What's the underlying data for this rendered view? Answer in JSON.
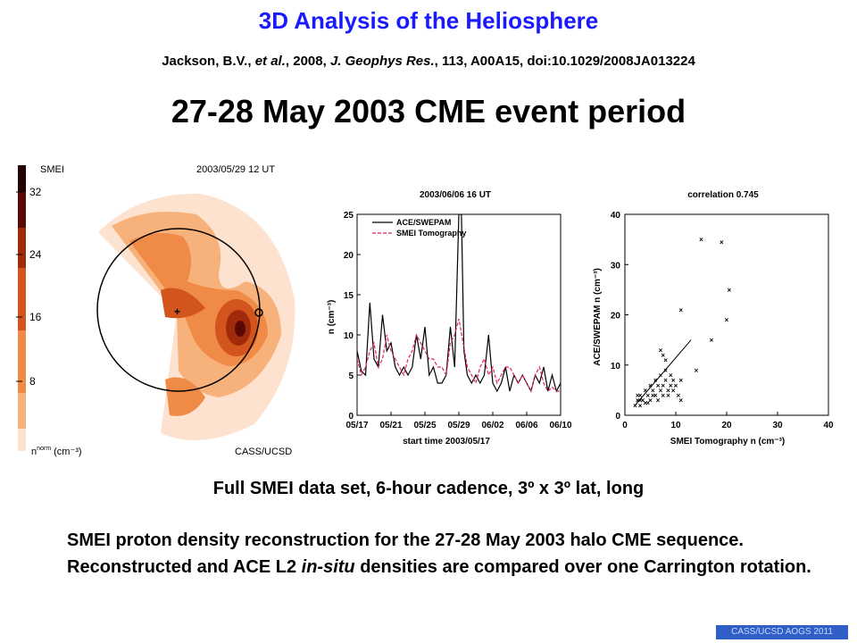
{
  "header": {
    "title": "3D Analysis of the Heliosphere",
    "citation": {
      "authors": "Jackson, B.V., ",
      "etal": "et al.",
      "year": ", 2008, ",
      "journal": "J. Geophys Res.",
      "rest": ", 113, A00A15, doi:10.1029/2008JA013224"
    },
    "subtitle": "27-28 May 2003 CME event period"
  },
  "figure_map": {
    "label": "SMEI",
    "date": "2003/05/29  12 UT",
    "scale_ticks": [
      "32",
      "24",
      "16",
      "8"
    ],
    "scale_unit_n": "n",
    "scale_unit_sup": "norm",
    "scale_unit": " (cm⁻³)",
    "credit": "CASS/UCSD",
    "colors": [
      "#fde3cf",
      "#f7b27c",
      "#ef8a47",
      "#d2551e",
      "#a02a0a",
      "#5a0a04",
      "#230001"
    ]
  },
  "chart_data": [
    {
      "type": "line",
      "title": "2003/06/06 16 UT",
      "xlabel": "start time 2003/05/17",
      "ylabel": "n (cm⁻³)",
      "xtick_labels": [
        "05/17",
        "05/21",
        "05/25",
        "05/29",
        "06/02",
        "06/06",
        "06/10"
      ],
      "xlim": [
        0,
        24
      ],
      "ylim": [
        0,
        25
      ],
      "yticks": [
        0,
        5,
        10,
        15,
        20,
        25
      ],
      "legend": "top-left",
      "series": [
        {
          "name": "ACE/SWEPAM",
          "color": "#000000",
          "dash": "solid",
          "points": [
            [
              0,
              8
            ],
            [
              0.5,
              5.5
            ],
            [
              1,
              5
            ],
            [
              1.5,
              14
            ],
            [
              2,
              7
            ],
            [
              2.5,
              6
            ],
            [
              3,
              12.5
            ],
            [
              3.5,
              8
            ],
            [
              4,
              9
            ],
            [
              4.5,
              6
            ],
            [
              5,
              5
            ],
            [
              5.5,
              6
            ],
            [
              6,
              5
            ],
            [
              6.5,
              6
            ],
            [
              7,
              10
            ],
            [
              7.5,
              7
            ],
            [
              8,
              11
            ],
            [
              8.5,
              5
            ],
            [
              9,
              6
            ],
            [
              9.5,
              4
            ],
            [
              10,
              4
            ],
            [
              10.5,
              5
            ],
            [
              11,
              11
            ],
            [
              11.5,
              6
            ],
            [
              12,
              25
            ],
            [
              12.3,
              25
            ],
            [
              12.6,
              8
            ],
            [
              13,
              5
            ],
            [
              13.5,
              4
            ],
            [
              14,
              5
            ],
            [
              14.5,
              4
            ],
            [
              15,
              5
            ],
            [
              15.5,
              10
            ],
            [
              16,
              4
            ],
            [
              16.5,
              3
            ],
            [
              17,
              4
            ],
            [
              17.5,
              6
            ],
            [
              18,
              3
            ],
            [
              18.5,
              5
            ],
            [
              19,
              4
            ],
            [
              19.5,
              5
            ],
            [
              20,
              4
            ],
            [
              20.5,
              3
            ],
            [
              21,
              5
            ],
            [
              21.5,
              4
            ],
            [
              22,
              6
            ],
            [
              22.5,
              3
            ],
            [
              23,
              5
            ],
            [
              23.5,
              3
            ],
            [
              24,
              4
            ]
          ]
        },
        {
          "name": "SMEI Tomography",
          "color": "#e0245e",
          "dash": "dashed",
          "points": [
            [
              0,
              7
            ],
            [
              0.5,
              5
            ],
            [
              1,
              6
            ],
            [
              1.5,
              8
            ],
            [
              2,
              9
            ],
            [
              2.5,
              6
            ],
            [
              3,
              7
            ],
            [
              3.5,
              10
            ],
            [
              4,
              8
            ],
            [
              4.5,
              7
            ],
            [
              5,
              6
            ],
            [
              5.5,
              5
            ],
            [
              6,
              7
            ],
            [
              6.5,
              8
            ],
            [
              7,
              10
            ],
            [
              7.5,
              9
            ],
            [
              8,
              8
            ],
            [
              8.5,
              7
            ],
            [
              9,
              7
            ],
            [
              9.5,
              6
            ],
            [
              10,
              6
            ],
            [
              10.5,
              5
            ],
            [
              11,
              9
            ],
            [
              11.5,
              10
            ],
            [
              12,
              12
            ],
            [
              12.5,
              9
            ],
            [
              13,
              6
            ],
            [
              13.5,
              5
            ],
            [
              14,
              4
            ],
            [
              14.5,
              6
            ],
            [
              15,
              7
            ],
            [
              15.5,
              5
            ],
            [
              16,
              6
            ],
            [
              16.5,
              4
            ],
            [
              17,
              5
            ],
            [
              17.5,
              6
            ],
            [
              18,
              6
            ],
            [
              18.5,
              5
            ],
            [
              19,
              4
            ],
            [
              19.5,
              5
            ],
            [
              20,
              4
            ],
            [
              20.5,
              3
            ],
            [
              21,
              5
            ],
            [
              21.5,
              6
            ],
            [
              22,
              4
            ],
            [
              22.5,
              3
            ],
            [
              23,
              3.5
            ],
            [
              23.5,
              3
            ],
            [
              24,
              3
            ]
          ]
        }
      ]
    },
    {
      "type": "scatter",
      "title": "correlation 0.745",
      "xlabel": "SMEI Tomography n (cm⁻³)",
      "ylabel": "ACE/SWEPAM n (cm⁻³)",
      "xlim": [
        0,
        40
      ],
      "ylim": [
        0,
        40
      ],
      "xticks": [
        0,
        10,
        20,
        30,
        40
      ],
      "yticks": [
        0,
        10,
        20,
        30,
        40
      ],
      "fit_line": [
        [
          2,
          2
        ],
        [
          13,
          15
        ]
      ],
      "points": [
        [
          2,
          2
        ],
        [
          2.5,
          3
        ],
        [
          3,
          2
        ],
        [
          3,
          4
        ],
        [
          3.5,
          3
        ],
        [
          4,
          2.5
        ],
        [
          4,
          5
        ],
        [
          4.5,
          4
        ],
        [
          5,
          3
        ],
        [
          5,
          6
        ],
        [
          5.5,
          5
        ],
        [
          6,
          4
        ],
        [
          6,
          7
        ],
        [
          6.5,
          6
        ],
        [
          7,
          5
        ],
        [
          7,
          8
        ],
        [
          7.5,
          6
        ],
        [
          8,
          7
        ],
        [
          8,
          9
        ],
        [
          8.5,
          5
        ],
        [
          9,
          6
        ],
        [
          9,
          8
        ],
        [
          9.5,
          7
        ],
        [
          10,
          6
        ],
        [
          3,
          3
        ],
        [
          2.5,
          4
        ],
        [
          4.5,
          2.5
        ],
        [
          5.5,
          4
        ],
        [
          6.5,
          3
        ],
        [
          7.5,
          4
        ],
        [
          8.5,
          4
        ],
        [
          9.5,
          5
        ],
        [
          10.5,
          4
        ],
        [
          11,
          3
        ],
        [
          11,
          7
        ],
        [
          7,
          13
        ],
        [
          7.5,
          12
        ],
        [
          8,
          11
        ],
        [
          11,
          21
        ],
        [
          14,
          9
        ],
        [
          15,
          35
        ],
        [
          17,
          15
        ],
        [
          19,
          34.5
        ],
        [
          20,
          19
        ],
        [
          20.5,
          25
        ]
      ]
    }
  ],
  "caption": "Full SMEI data set, 6-hour cadence, 3º x 3º lat, long",
  "body": {
    "part1": "SMEI proton density reconstruction for the 27-28 May 2003 halo CME sequence.  Reconstructed and ACE L2 ",
    "italic": "in-situ",
    "part2": " densities are compared over one Carrington rotation."
  },
  "footer": "CASS/UCSD AOGS 2011"
}
